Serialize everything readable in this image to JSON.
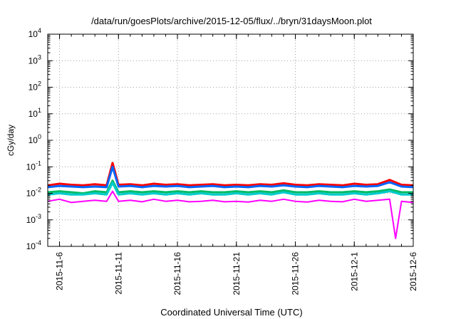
{
  "chart_data": {
    "type": "line",
    "title": "/data/run/goesPlots/archive/2015-12-05/flux/../bryn/31daysMoon.plot",
    "xlabel": "Coordinated Universal Time (UTC)",
    "ylabel": "cGy/day",
    "yscale": "log",
    "ylim": [
      0.0001,
      10000
    ],
    "xlim": [
      "2015-11-05",
      "2015-12-06"
    ],
    "grid": true,
    "y_ticks": [
      {
        "base": "10",
        "exp": "-4",
        "value": 0.0001
      },
      {
        "base": "10",
        "exp": "-3",
        "value": 0.001
      },
      {
        "base": "10",
        "exp": "-2",
        "value": 0.01
      },
      {
        "base": "10",
        "exp": "-1",
        "value": 0.1
      },
      {
        "base": "10",
        "exp": "0",
        "value": 1
      },
      {
        "base": "10",
        "exp": "1",
        "value": 10
      },
      {
        "base": "10",
        "exp": "2",
        "value": 100
      },
      {
        "base": "10",
        "exp": "3",
        "value": 1000
      },
      {
        "base": "10",
        "exp": "4",
        "value": 10000
      }
    ],
    "x_ticks": [
      {
        "label": "2015-11-6",
        "date": "2015-11-06"
      },
      {
        "label": "2015-11-11",
        "date": "2015-11-11"
      },
      {
        "label": "2015-11-16",
        "date": "2015-11-16"
      },
      {
        "label": "2015-11-21",
        "date": "2015-11-21"
      },
      {
        "label": "2015-11-26",
        "date": "2015-11-26"
      },
      {
        "label": "2015-12-1",
        "date": "2015-12-01"
      },
      {
        "label": "2015-12-6",
        "date": "2015-12-06"
      }
    ],
    "series": [
      {
        "color": "#ff0000",
        "x": [
          "2015-11-05",
          "2015-11-06",
          "2015-11-07",
          "2015-11-08",
          "2015-11-09",
          "2015-11-10",
          "2015-11-10T12:00",
          "2015-11-11",
          "2015-11-12",
          "2015-11-13",
          "2015-11-14",
          "2015-11-15",
          "2015-11-16",
          "2015-11-17",
          "2015-11-18",
          "2015-11-19",
          "2015-11-20",
          "2015-11-21",
          "2015-11-22",
          "2015-11-23",
          "2015-11-24",
          "2015-11-25",
          "2015-11-26",
          "2015-11-27",
          "2015-11-28",
          "2015-11-29",
          "2015-11-30",
          "2015-12-01",
          "2015-12-02",
          "2015-12-03",
          "2015-12-04",
          "2015-12-05",
          "2015-12-06"
        ],
        "y": [
          0.02,
          0.023,
          0.021,
          0.02,
          0.022,
          0.02,
          0.14,
          0.021,
          0.022,
          0.02,
          0.023,
          0.021,
          0.022,
          0.02,
          0.021,
          0.022,
          0.02,
          0.021,
          0.02,
          0.022,
          0.021,
          0.024,
          0.021,
          0.02,
          0.022,
          0.021,
          0.02,
          0.023,
          0.021,
          0.022,
          0.032,
          0.021,
          0.02
        ]
      },
      {
        "color": "#0066ff",
        "x": [
          "2015-11-05",
          "2015-11-06",
          "2015-11-07",
          "2015-11-08",
          "2015-11-09",
          "2015-11-10",
          "2015-11-10T12:00",
          "2015-11-11",
          "2015-11-12",
          "2015-11-13",
          "2015-11-14",
          "2015-11-15",
          "2015-11-16",
          "2015-11-17",
          "2015-11-18",
          "2015-11-19",
          "2015-11-20",
          "2015-11-21",
          "2015-11-22",
          "2015-11-23",
          "2015-11-24",
          "2015-11-25",
          "2015-11-26",
          "2015-11-27",
          "2015-11-28",
          "2015-11-29",
          "2015-11-30",
          "2015-12-01",
          "2015-12-02",
          "2015-12-03",
          "2015-12-04",
          "2015-12-05",
          "2015-12-06"
        ],
        "y": [
          0.017,
          0.019,
          0.018,
          0.017,
          0.018,
          0.017,
          0.1,
          0.018,
          0.019,
          0.017,
          0.019,
          0.018,
          0.019,
          0.017,
          0.018,
          0.019,
          0.017,
          0.018,
          0.017,
          0.019,
          0.018,
          0.02,
          0.018,
          0.017,
          0.019,
          0.018,
          0.017,
          0.019,
          0.018,
          0.019,
          0.026,
          0.018,
          0.017
        ]
      },
      {
        "color": "#00bb66",
        "x": [
          "2015-11-05",
          "2015-11-06",
          "2015-11-07",
          "2015-11-08",
          "2015-11-09",
          "2015-11-10",
          "2015-11-10T12:00",
          "2015-11-11",
          "2015-11-12",
          "2015-11-13",
          "2015-11-14",
          "2015-11-15",
          "2015-11-16",
          "2015-11-17",
          "2015-11-18",
          "2015-11-19",
          "2015-11-20",
          "2015-11-21",
          "2015-11-22",
          "2015-11-23",
          "2015-11-24",
          "2015-11-25",
          "2015-11-26",
          "2015-11-27",
          "2015-11-28",
          "2015-11-29",
          "2015-11-30",
          "2015-12-01",
          "2015-12-02",
          "2015-12-03",
          "2015-12-04",
          "2015-12-05",
          "2015-12-06"
        ],
        "y": [
          0.011,
          0.012,
          0.011,
          0.01,
          0.012,
          0.011,
          0.03,
          0.011,
          0.012,
          0.011,
          0.012,
          0.011,
          0.012,
          0.011,
          0.012,
          0.011,
          0.011,
          0.012,
          0.011,
          0.012,
          0.011,
          0.013,
          0.011,
          0.011,
          0.012,
          0.011,
          0.011,
          0.012,
          0.011,
          0.012,
          0.014,
          0.011,
          0.011
        ]
      },
      {
        "color": "#00cccc",
        "x": [
          "2015-11-05",
          "2015-11-06",
          "2015-11-07",
          "2015-11-08",
          "2015-11-09",
          "2015-11-10",
          "2015-11-10T12:00",
          "2015-11-11",
          "2015-11-12",
          "2015-11-13",
          "2015-11-14",
          "2015-11-15",
          "2015-11-16",
          "2015-11-17",
          "2015-11-18",
          "2015-11-19",
          "2015-11-20",
          "2015-11-21",
          "2015-11-22",
          "2015-11-23",
          "2015-11-24",
          "2015-11-25",
          "2015-11-26",
          "2015-11-27",
          "2015-11-28",
          "2015-11-29",
          "2015-11-30",
          "2015-12-01",
          "2015-12-02",
          "2015-12-03",
          "2015-12-04",
          "2015-12-05",
          "2015-12-06"
        ],
        "y": [
          0.009,
          0.01,
          0.009,
          0.009,
          0.01,
          0.009,
          0.025,
          0.009,
          0.01,
          0.009,
          0.01,
          0.009,
          0.01,
          0.009,
          0.01,
          0.009,
          0.009,
          0.01,
          0.009,
          0.01,
          0.009,
          0.011,
          0.009,
          0.009,
          0.01,
          0.009,
          0.009,
          0.01,
          0.009,
          0.01,
          0.012,
          0.009,
          0.009
        ]
      },
      {
        "color": "#ff00ff",
        "x": [
          "2015-11-05",
          "2015-11-06",
          "2015-11-07",
          "2015-11-08",
          "2015-11-09",
          "2015-11-10",
          "2015-11-10T12:00",
          "2015-11-11",
          "2015-11-12",
          "2015-11-13",
          "2015-11-14",
          "2015-11-15",
          "2015-11-16",
          "2015-11-17",
          "2015-11-18",
          "2015-11-19",
          "2015-11-20",
          "2015-11-21",
          "2015-11-22",
          "2015-11-23",
          "2015-11-24",
          "2015-11-25",
          "2015-11-26",
          "2015-11-27",
          "2015-11-28",
          "2015-11-29",
          "2015-11-30",
          "2015-12-01",
          "2015-12-02",
          "2015-12-03",
          "2015-12-04",
          "2015-12-04T12:00",
          "2015-12-05",
          "2015-12-06"
        ],
        "y": [
          0.005,
          0.006,
          0.0045,
          0.005,
          0.0055,
          0.005,
          0.012,
          0.005,
          0.0055,
          0.0048,
          0.006,
          0.005,
          0.0055,
          0.0048,
          0.005,
          0.0055,
          0.0048,
          0.005,
          0.0047,
          0.0055,
          0.005,
          0.006,
          0.005,
          0.0047,
          0.0055,
          0.005,
          0.0048,
          0.006,
          0.005,
          0.0055,
          0.006,
          0.0002,
          0.005,
          0.0045
        ]
      }
    ]
  }
}
